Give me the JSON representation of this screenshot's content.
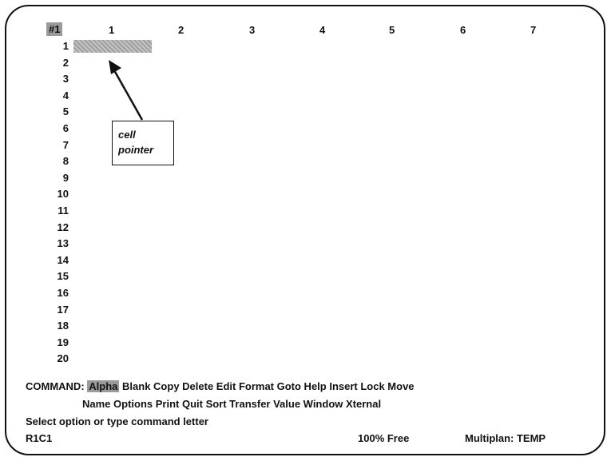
{
  "window_number": "#1",
  "columns": [
    "1",
    "2",
    "3",
    "4",
    "5",
    "6",
    "7"
  ],
  "rows": [
    "1",
    "2",
    "3",
    "4",
    "5",
    "6",
    "7",
    "8",
    "9",
    "10",
    "11",
    "12",
    "13",
    "14",
    "15",
    "16",
    "17",
    "18",
    "19",
    "20"
  ],
  "callout": {
    "line1": "cell",
    "line2": "pointer"
  },
  "command": {
    "prefix": "COMMAND:",
    "highlighted": "Alpha",
    "line1_rest": "Blank Copy Delete Edit Format Goto Help Insert Lock Move",
    "line2": "Name Options Print Quit Sort Transfer Value Window Xternal"
  },
  "message": "Select option or type command letter",
  "status": {
    "cell_ref": "R1C1",
    "free": "100% Free",
    "app": "Multiplan: TEMP"
  }
}
